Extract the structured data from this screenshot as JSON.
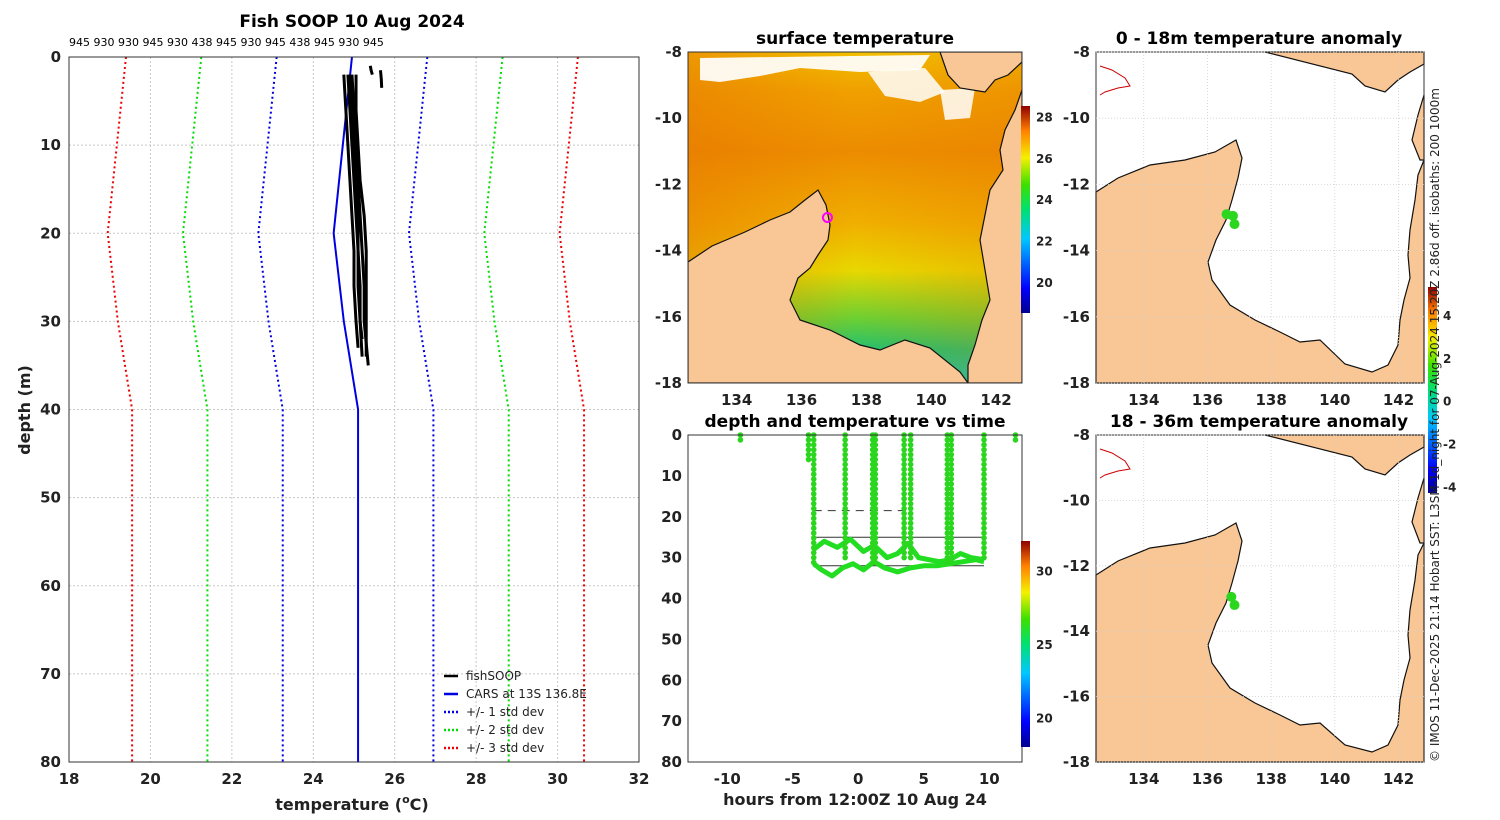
{
  "credit": "© IMOS 11-Dec-2025 21:14 Hobart SST: L3SM-1d_night for 07-Aug-2024 15:20Z 2.86d off. isobaths: 200  1000m",
  "chart_data": [
    {
      "id": "profile",
      "type": "line",
      "title": "Fish SOOP 10 Aug 2024",
      "xlabel": "temperature (°C)",
      "ylabel": "depth (m)",
      "xlim": [
        18,
        32
      ],
      "ylim": [
        80,
        0
      ],
      "xticks": [
        18,
        20,
        22,
        24,
        26,
        28,
        30,
        32
      ],
      "yticks": [
        0,
        10,
        20,
        30,
        40,
        50,
        60,
        70,
        80
      ],
      "top_labels": "945 930 930 945 930 438 945 930 945 438 945 930 945",
      "legend_position": "bottom-right",
      "legend": [
        {
          "label": "fishSOOP",
          "color": "#000000",
          "style": "solid"
        },
        {
          "label": "CARS at 13S 136.8E",
          "color": "#0000e0",
          "style": "solid"
        },
        {
          "label": "+/- 1 std dev",
          "color": "#0000e0",
          "style": "dotted"
        },
        {
          "label": "+/- 2 std dev",
          "color": "#00dd00",
          "style": "dotted"
        },
        {
          "label": "+/- 3 std dev",
          "color": "#ee0000",
          "style": "dotted"
        }
      ],
      "cars_depth": [
        0,
        20,
        30,
        40,
        80
      ],
      "cars_mean": [
        24.95,
        24.5,
        24.75,
        25.1,
        25.1
      ],
      "std1": [
        1.85,
        1.85,
        1.85,
        1.85,
        1.85
      ],
      "fishsoop_profiles": [
        {
          "depth": [
            2,
            6,
            10,
            14,
            18,
            22,
            26,
            30,
            33
          ],
          "temp": [
            24.75,
            24.8,
            24.85,
            24.9,
            24.95,
            25.0,
            25.0,
            25.05,
            25.1
          ]
        },
        {
          "depth": [
            2,
            6,
            10,
            14,
            18,
            22,
            26,
            30,
            34
          ],
          "temp": [
            24.85,
            24.9,
            24.95,
            25.0,
            25.05,
            25.1,
            25.1,
            25.15,
            25.2
          ]
        },
        {
          "depth": [
            2,
            6,
            10,
            14,
            18,
            22,
            26,
            30,
            35
          ],
          "temp": [
            24.95,
            25.0,
            25.05,
            25.1,
            25.15,
            25.2,
            25.25,
            25.25,
            25.35
          ]
        },
        {
          "depth": [
            2,
            6,
            10,
            14,
            18,
            22,
            26,
            30,
            34
          ],
          "temp": [
            25.05,
            25.05,
            25.1,
            25.15,
            25.25,
            25.3,
            25.3,
            25.3,
            25.3
          ]
        },
        {
          "depth": [
            2,
            6,
            10,
            14,
            18,
            22,
            26,
            30,
            32
          ],
          "temp": [
            24.9,
            24.95,
            25.0,
            25.05,
            25.1,
            25.1,
            25.15,
            25.15,
            25.2
          ]
        },
        {
          "depth": [
            1,
            1.5,
            2
          ],
          "temp": [
            25.4,
            25.42,
            25.45
          ]
        },
        {
          "depth": [
            1.5,
            2.5,
            3.5
          ],
          "temp": [
            25.65,
            25.67,
            25.68
          ]
        }
      ]
    },
    {
      "id": "sst",
      "type": "heatmap",
      "title": "surface temperature",
      "xlim": [
        132.5,
        142.8
      ],
      "ylim": [
        -18,
        -8
      ],
      "xticks": [
        134,
        136,
        138,
        140,
        142
      ],
      "yticks": [
        -8,
        -10,
        -12,
        -14,
        -16,
        -18
      ],
      "colorbar": {
        "min": 18.5,
        "max": 28.5,
        "ticks": [
          20,
          22,
          24,
          26,
          28
        ]
      },
      "marker": {
        "lon": 136.8,
        "lat": -13.0,
        "color": "#ff00ff"
      }
    },
    {
      "id": "anom1",
      "type": "heatmap",
      "title": "0 - 18m temperature anomaly",
      "xlim": [
        132.5,
        142.8
      ],
      "ylim": [
        -18,
        -8
      ],
      "xticks": [
        134,
        136,
        138,
        140,
        142
      ],
      "yticks": [
        -8,
        -10,
        -12,
        -14,
        -16,
        -18
      ],
      "points": [
        {
          "lon": 136.6,
          "lat": -12.9,
          "value": 0.1
        },
        {
          "lon": 136.8,
          "lat": -12.95,
          "value": 0.1
        },
        {
          "lon": 136.85,
          "lat": -13.2,
          "value": 0.1
        }
      ]
    },
    {
      "id": "anom2",
      "type": "heatmap",
      "title": "18 - 36m temperature anomaly",
      "xlim": [
        132.5,
        142.8
      ],
      "ylim": [
        -18,
        -8
      ],
      "xticks": [
        134,
        136,
        138,
        140,
        142
      ],
      "yticks": [
        -8,
        -10,
        -12,
        -14,
        -16,
        -18
      ],
      "points": [
        {
          "lon": 136.75,
          "lat": -12.95,
          "value": 0.1
        },
        {
          "lon": 136.85,
          "lat": -13.2,
          "value": 0.1
        }
      ]
    },
    {
      "id": "anom_colorbar",
      "type": "colorbar",
      "min": -4.3,
      "max": 5.3,
      "ticks": [
        -4,
        -2,
        0,
        2,
        4
      ]
    },
    {
      "id": "timeseries",
      "type": "scatter",
      "title": "depth and temperature vs time",
      "xlabel": "hours from 12:00Z 10 Aug 24",
      "xlim": [
        -13,
        12.5
      ],
      "ylim": [
        80,
        0
      ],
      "xticks": [
        -10,
        -5,
        0,
        5,
        10
      ],
      "yticks": [
        0,
        10,
        20,
        30,
        40,
        50,
        60,
        70,
        80
      ],
      "colorbar": {
        "min": 18,
        "max": 32,
        "ticks": [
          20,
          25,
          30
        ]
      },
      "casts": [
        {
          "t": -9.0,
          "max_depth": 2
        },
        {
          "t": -3.8,
          "max_depth": 6
        },
        {
          "t": -3.4,
          "max_depth": 32
        },
        {
          "t": -1.0,
          "max_depth": 30
        },
        {
          "t": 1.1,
          "max_depth": 32
        },
        {
          "t": 1.3,
          "max_depth": 32
        },
        {
          "t": 3.5,
          "max_depth": 30
        },
        {
          "t": 4.0,
          "max_depth": 30
        },
        {
          "t": 6.8,
          "max_depth": 32
        },
        {
          "t": 7.1,
          "max_depth": 32
        },
        {
          "t": 9.6,
          "max_depth": 31
        },
        {
          "t": 12.0,
          "max_depth": 2
        }
      ],
      "bottom_track_t": [
        -3.4,
        -2.8,
        -2.0,
        -1.2,
        -0.4,
        0.4,
        1.2,
        2.0,
        3.0,
        4.0,
        5.0,
        6.0,
        7.0,
        8.0,
        9.0,
        9.6
      ],
      "bottom_track_depth": [
        31.5,
        33.0,
        34.5,
        32.5,
        31.5,
        33.0,
        31.0,
        32.5,
        33.5,
        32.5,
        32.0,
        32.0,
        31.5,
        31.0,
        30.5,
        31.0
      ],
      "mid_track_t": [
        -3.4,
        -2.6,
        -1.6,
        -0.6,
        0.4,
        1.2,
        2.2,
        3.0,
        3.8,
        4.6,
        5.4,
        6.2,
        7.0,
        7.8,
        8.6,
        9.6
      ],
      "mid_track_depth": [
        28.0,
        26.0,
        27.5,
        25.5,
        28.5,
        27.0,
        30.0,
        29.0,
        26.5,
        30.0,
        30.5,
        31.0,
        30.5,
        29.0,
        30.0,
        30.5
      ],
      "dashed_lines": [
        {
          "t0": -3.4,
          "t1": 3.8,
          "depth": 18.5
        },
        {
          "t0": -3.4,
          "t1": 9.6,
          "depth": 25.0
        },
        {
          "t0": -3.4,
          "t1": 9.6,
          "depth": 32.0
        }
      ]
    }
  ]
}
